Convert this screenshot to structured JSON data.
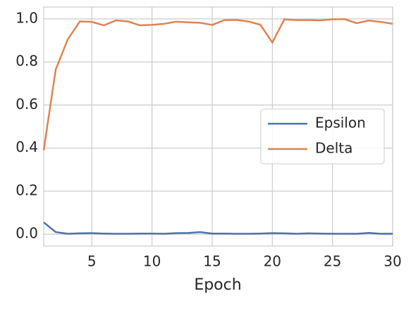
{
  "chart_data": {
    "type": "line",
    "x": [
      1,
      2,
      3,
      4,
      5,
      6,
      7,
      8,
      9,
      10,
      11,
      12,
      13,
      14,
      15,
      16,
      17,
      18,
      19,
      20,
      21,
      22,
      23,
      24,
      25,
      26,
      27,
      28,
      29,
      30
    ],
    "series": [
      {
        "name": "Epsilon",
        "color": "#4c72b0",
        "values": [
          0.055,
          0.01,
          0.002,
          0.004,
          0.005,
          0.003,
          0.002,
          0.002,
          0.003,
          0.003,
          0.002,
          0.005,
          0.006,
          0.01,
          0.003,
          0.003,
          0.002,
          0.002,
          0.003,
          0.005,
          0.004,
          0.002,
          0.004,
          0.003,
          0.002,
          0.002,
          0.002,
          0.006,
          0.002,
          0.002
        ]
      },
      {
        "name": "Delta",
        "color": "#dd8452",
        "values": [
          0.39,
          0.765,
          0.905,
          0.988,
          0.986,
          0.97,
          0.993,
          0.988,
          0.97,
          0.972,
          0.977,
          0.987,
          0.984,
          0.982,
          0.972,
          0.994,
          0.995,
          0.988,
          0.973,
          0.89,
          0.998,
          0.994,
          0.994,
          0.993,
          0.998,
          0.999,
          0.98,
          0.992,
          0.986,
          0.977
        ]
      }
    ],
    "xlabel": "Epoch",
    "xlim": [
      1,
      30
    ],
    "xticks": [
      5,
      10,
      15,
      20,
      25,
      30
    ],
    "ylim": [
      -0.055,
      1.055
    ],
    "yticks": [
      {
        "value": 0,
        "label": "0.0"
      },
      0.2,
      0.4,
      0.6,
      0.8,
      {
        "value": 1,
        "label": "1.0"
      }
    ],
    "grid": true,
    "legend": "right"
  }
}
